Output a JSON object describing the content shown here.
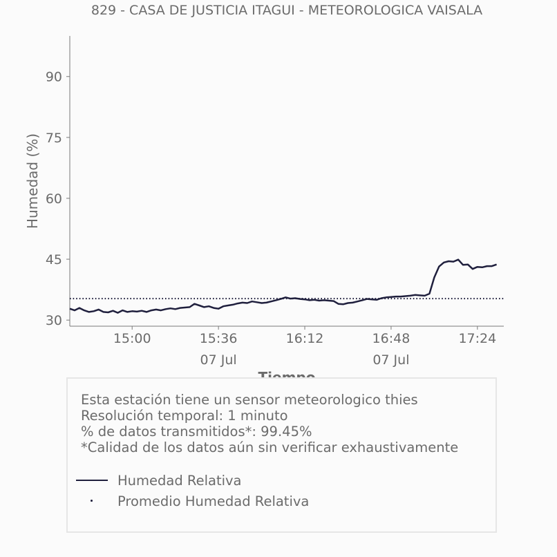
{
  "chart_data": {
    "type": "line",
    "title": "829 - CASA DE JUSTICIA ITAGUI - METEOROLOGICA VAISALA",
    "xlabel": "Tiempo",
    "ylabel": "Humedad (%)",
    "ylim": [
      28.5,
      100
    ],
    "yticks": [
      30,
      45,
      60,
      75,
      90
    ],
    "xlim": [
      "14:34",
      "17:35"
    ],
    "xticks": [
      {
        "time": "15:00",
        "label": "15:00",
        "sublabel": ""
      },
      {
        "time": "15:36",
        "label": "15:36",
        "sublabel": "07 Jul"
      },
      {
        "time": "16:12",
        "label": "16:12",
        "sublabel": ""
      },
      {
        "time": "16:48",
        "label": "16:48",
        "sublabel": "07 Jul"
      },
      {
        "time": "17:24",
        "label": "17:24",
        "sublabel": ""
      }
    ],
    "grid": false,
    "series": [
      {
        "name": "Humedad Relativa",
        "color": "#1f1f3d",
        "style": "solid",
        "points": [
          [
            "14:34",
            32.8
          ],
          [
            "14:36",
            32.4
          ],
          [
            "14:38",
            33.0
          ],
          [
            "14:40",
            32.4
          ],
          [
            "14:42",
            32.0
          ],
          [
            "14:44",
            32.2
          ],
          [
            "14:46",
            32.6
          ],
          [
            "14:48",
            32.0
          ],
          [
            "14:50",
            31.9
          ],
          [
            "14:52",
            32.3
          ],
          [
            "14:54",
            31.8
          ],
          [
            "14:56",
            32.4
          ],
          [
            "14:58",
            32.0
          ],
          [
            "15:00",
            32.2
          ],
          [
            "15:02",
            32.1
          ],
          [
            "15:04",
            32.3
          ],
          [
            "15:06",
            32.0
          ],
          [
            "15:08",
            32.4
          ],
          [
            "15:10",
            32.6
          ],
          [
            "15:12",
            32.4
          ],
          [
            "15:14",
            32.7
          ],
          [
            "15:16",
            32.9
          ],
          [
            "15:18",
            32.7
          ],
          [
            "15:20",
            33.0
          ],
          [
            "15:22",
            33.1
          ],
          [
            "15:24",
            33.2
          ],
          [
            "15:26",
            34.0
          ],
          [
            "15:28",
            33.6
          ],
          [
            "15:30",
            33.2
          ],
          [
            "15:32",
            33.4
          ],
          [
            "15:34",
            33.0
          ],
          [
            "15:36",
            32.8
          ],
          [
            "15:38",
            33.4
          ],
          [
            "15:40",
            33.6
          ],
          [
            "15:42",
            33.8
          ],
          [
            "15:44",
            34.1
          ],
          [
            "15:46",
            34.3
          ],
          [
            "15:48",
            34.2
          ],
          [
            "15:50",
            34.6
          ],
          [
            "15:52",
            34.4
          ],
          [
            "15:54",
            34.2
          ],
          [
            "15:56",
            34.3
          ],
          [
            "15:58",
            34.6
          ],
          [
            "16:00",
            34.9
          ],
          [
            "16:02",
            35.2
          ],
          [
            "16:04",
            35.6
          ],
          [
            "16:06",
            35.3
          ],
          [
            "16:08",
            35.4
          ],
          [
            "16:10",
            35.2
          ],
          [
            "16:12",
            35.1
          ],
          [
            "16:14",
            34.9
          ],
          [
            "16:16",
            35.0
          ],
          [
            "16:18",
            34.8
          ],
          [
            "16:20",
            34.9
          ],
          [
            "16:22",
            34.8
          ],
          [
            "16:24",
            34.7
          ],
          [
            "16:26",
            34.0
          ],
          [
            "16:28",
            33.9
          ],
          [
            "16:30",
            34.2
          ],
          [
            "16:32",
            34.3
          ],
          [
            "16:34",
            34.6
          ],
          [
            "16:36",
            34.9
          ],
          [
            "16:38",
            35.2
          ],
          [
            "16:40",
            35.1
          ],
          [
            "16:42",
            35.0
          ],
          [
            "16:44",
            35.4
          ],
          [
            "16:46",
            35.6
          ],
          [
            "16:48",
            35.7
          ],
          [
            "16:50",
            35.8
          ],
          [
            "16:52",
            35.8
          ],
          [
            "16:54",
            35.9
          ],
          [
            "16:56",
            36.0
          ],
          [
            "16:58",
            36.2
          ],
          [
            "17:00",
            36.1
          ],
          [
            "17:02",
            36.0
          ],
          [
            "17:04",
            36.5
          ],
          [
            "17:06",
            40.5
          ],
          [
            "17:08",
            43.2
          ],
          [
            "17:10",
            44.2
          ],
          [
            "17:12",
            44.5
          ],
          [
            "17:14",
            44.4
          ],
          [
            "17:16",
            44.9
          ],
          [
            "17:18",
            43.6
          ],
          [
            "17:20",
            43.7
          ],
          [
            "17:22",
            42.6
          ],
          [
            "17:24",
            43.1
          ],
          [
            "17:26",
            43.0
          ],
          [
            "17:28",
            43.3
          ],
          [
            "17:30",
            43.3
          ],
          [
            "17:32",
            43.7
          ]
        ]
      },
      {
        "name": "Promedio Humedad Relativa",
        "color": "#1f1f3d",
        "style": "dotted",
        "constant": 35.3
      }
    ]
  },
  "info": {
    "lines": [
      "Esta estación tiene un sensor meteorologico thies",
      "Resolución temporal: 1 minuto",
      "% de datos transmitidos*: 99.45%",
      "*Calidad de los datos aún sin verificar exhaustivamente"
    ],
    "legend": [
      {
        "label": "Humedad Relativa",
        "style": "line"
      },
      {
        "label": "Promedio Humedad Relativa",
        "style": "dot"
      }
    ]
  }
}
